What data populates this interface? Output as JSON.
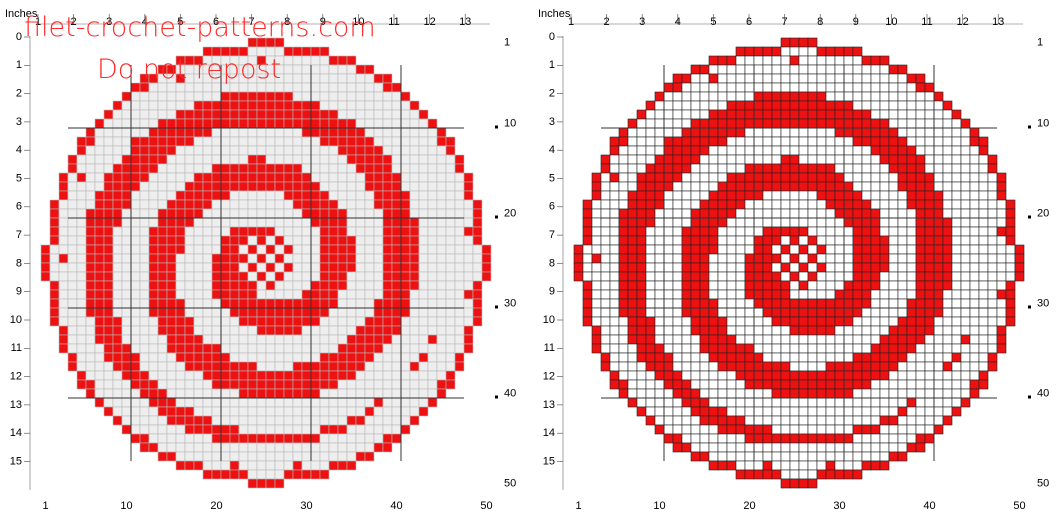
{
  "watermark": {
    "site": "filet-crochet-patterns.com",
    "notice": "Do not repost"
  },
  "panels": [
    {
      "inches_label": "Inches",
      "top_ruler": [
        1,
        2,
        3,
        4,
        5,
        6,
        7,
        8,
        9,
        10,
        11,
        12,
        13
      ],
      "left_ruler": [
        0,
        1,
        2,
        3,
        4,
        5,
        6,
        7,
        8,
        9,
        10,
        11,
        12,
        13,
        14,
        15
      ],
      "row_numbers": [
        1,
        10,
        20,
        30,
        40,
        50
      ],
      "column_numbers": [
        1,
        10,
        20,
        30,
        40,
        50
      ]
    },
    {
      "inches_label": "Inches",
      "top_ruler": [
        1,
        2,
        3,
        4,
        5,
        6,
        7,
        8,
        9,
        10,
        11,
        12,
        13
      ],
      "left_ruler": [
        0,
        1,
        2,
        3,
        4,
        5,
        6,
        7,
        8,
        9,
        10,
        11,
        12,
        13,
        14,
        15
      ],
      "row_numbers": [
        1,
        10,
        20,
        30,
        40,
        50
      ],
      "column_numbers": [
        1,
        10,
        20,
        30,
        40,
        50
      ]
    }
  ]
}
